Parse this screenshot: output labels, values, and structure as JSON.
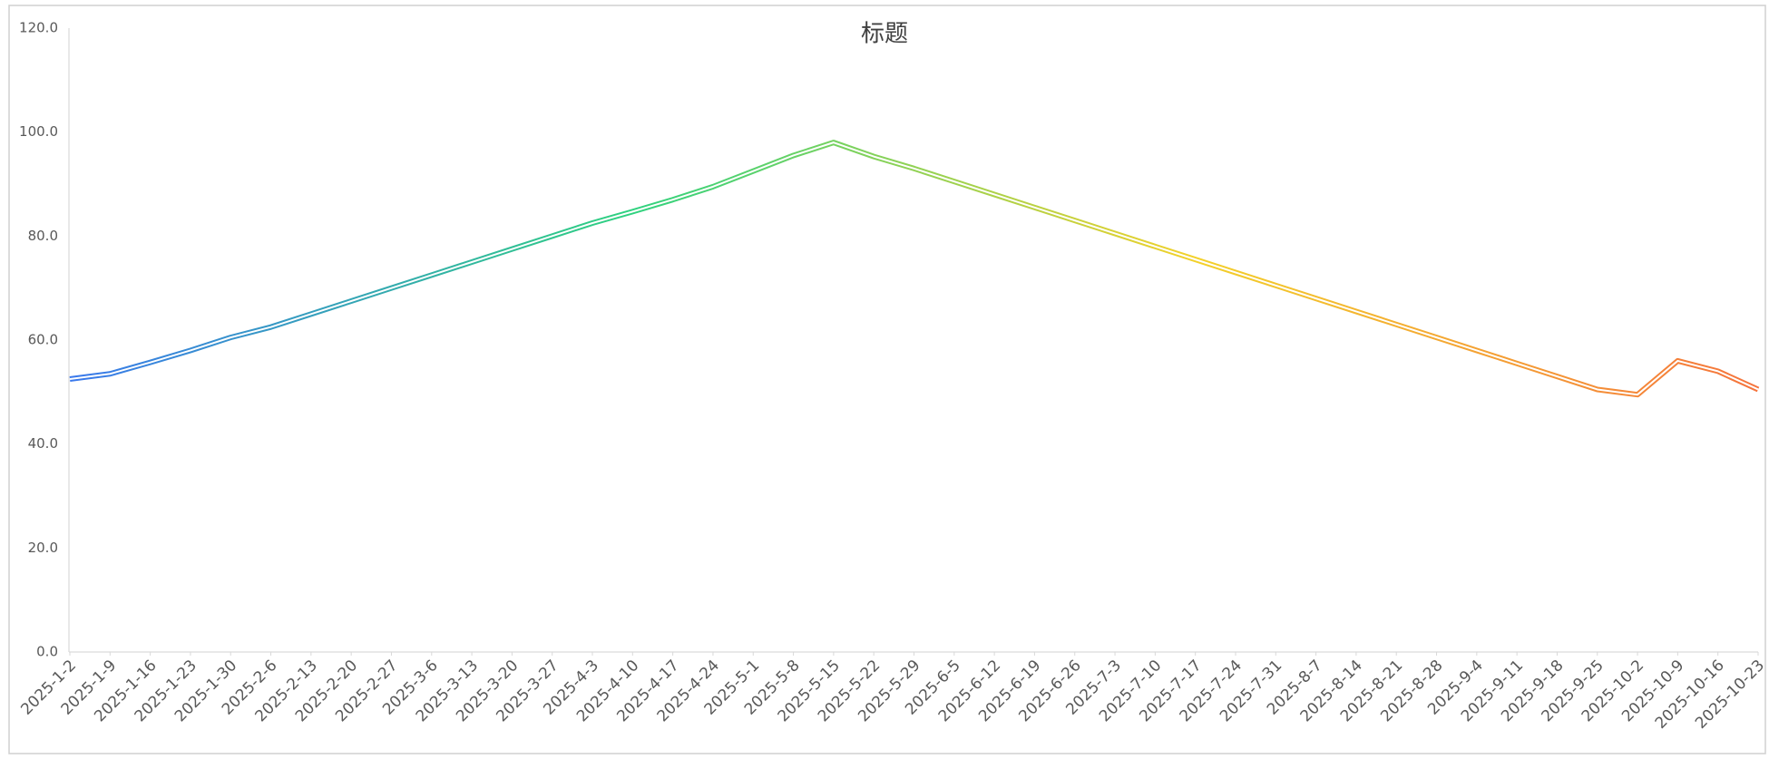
{
  "chart_data": {
    "type": "line",
    "title": "标题",
    "categories": [
      "2025-1-2",
      "2025-1-9",
      "2025-1-16",
      "2025-1-23",
      "2025-1-30",
      "2025-2-6",
      "2025-2-13",
      "2025-2-20",
      "2025-2-27",
      "2025-3-6",
      "2025-3-13",
      "2025-3-20",
      "2025-3-27",
      "2025-4-3",
      "2025-4-10",
      "2025-4-17",
      "2025-4-24",
      "2025-5-1",
      "2025-5-8",
      "2025-5-15",
      "2025-5-22",
      "2025-5-29",
      "2025-6-5",
      "2025-6-12",
      "2025-6-19",
      "2025-6-26",
      "2025-7-3",
      "2025-7-10",
      "2025-7-17",
      "2025-7-24",
      "2025-7-31",
      "2025-8-7",
      "2025-8-14",
      "2025-8-21",
      "2025-8-28",
      "2025-9-4",
      "2025-9-11",
      "2025-9-18",
      "2025-9-25",
      "2025-10-2",
      "2025-10-9",
      "2025-10-16",
      "2025-10-23"
    ],
    "values": [
      52.5,
      53.5,
      55.7,
      58,
      60.5,
      62.5,
      65,
      67.5,
      70,
      72.5,
      75,
      77.5,
      80,
      82.5,
      84.7,
      87,
      89.5,
      92.5,
      95.5,
      98,
      95.3,
      93,
      90.5,
      88,
      85.5,
      83,
      80.5,
      78,
      75.5,
      73,
      70.5,
      68,
      65.5,
      63,
      60.5,
      58,
      55.5,
      53,
      50.5,
      49.5,
      56,
      54,
      50.5
    ],
    "gradient_colors": [
      "#3a78ec",
      "#2fd27f",
      "#f3d12a",
      "#f5733c"
    ],
    "ylim": [
      0,
      120
    ],
    "yticks": [
      {
        "value": 0,
        "label": "0.0"
      },
      {
        "value": 20,
        "label": "20.0"
      },
      {
        "value": 40,
        "label": "40.0"
      },
      {
        "value": 60,
        "label": "60.0"
      },
      {
        "value": 80,
        "label": "80.0"
      },
      {
        "value": 100,
        "label": "100.0"
      },
      {
        "value": 120,
        "label": "120.0"
      }
    ],
    "grid": false
  }
}
